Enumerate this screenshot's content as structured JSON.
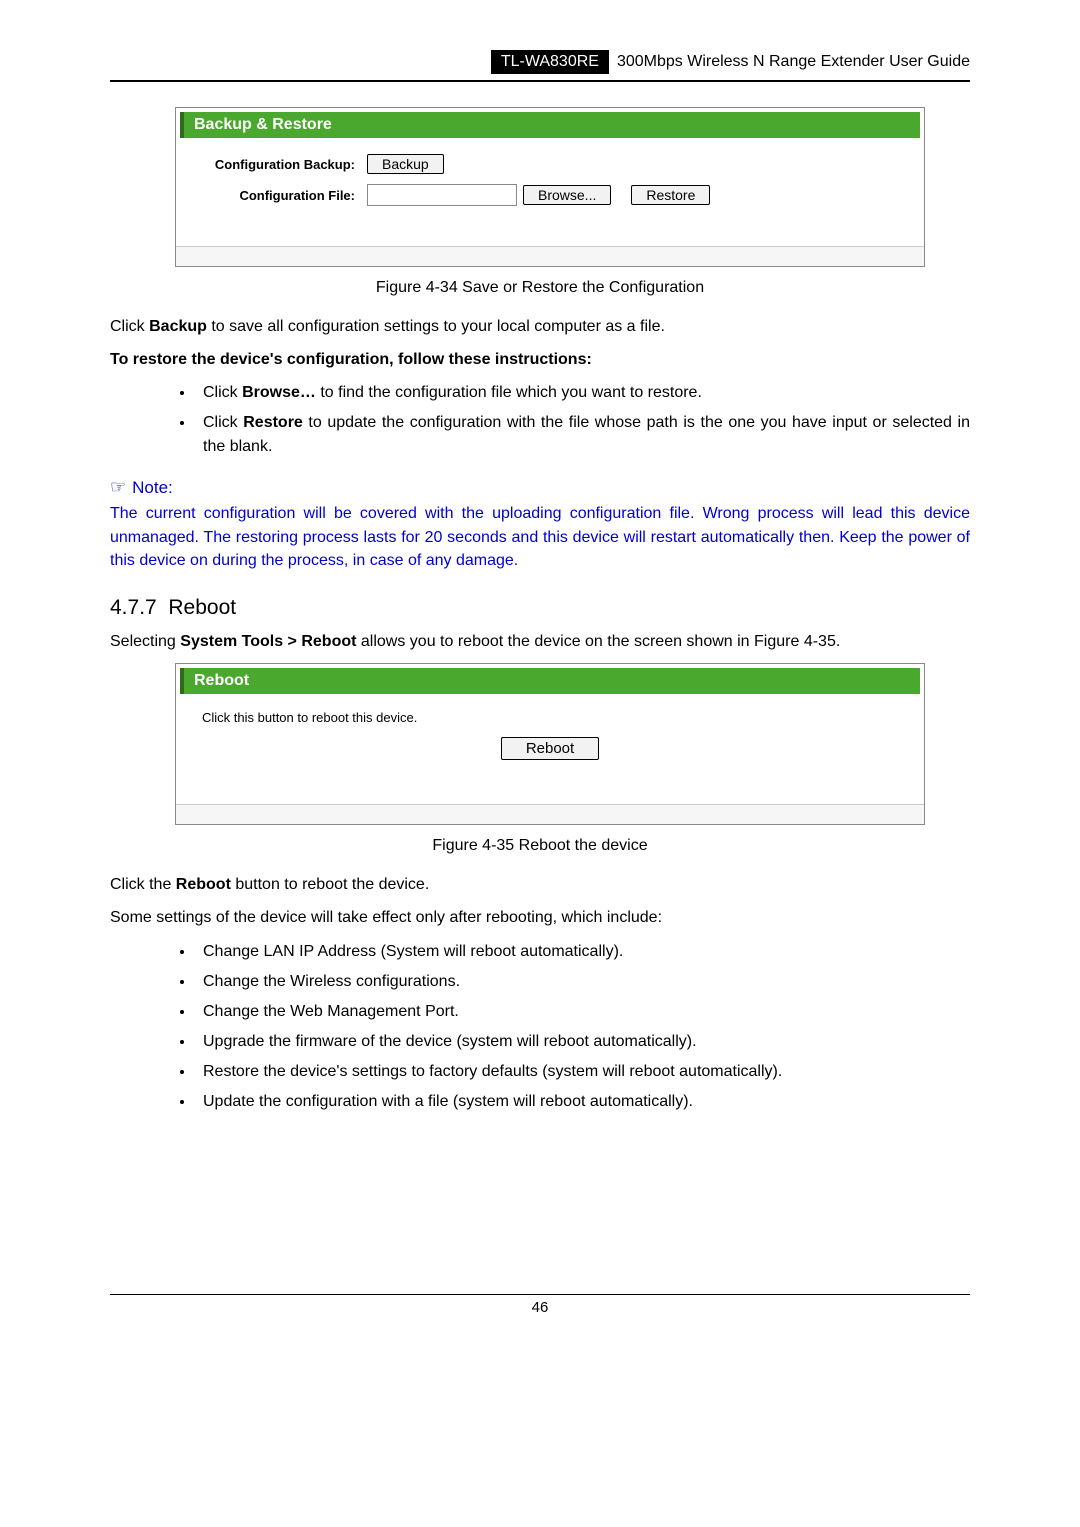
{
  "header": {
    "model": "TL-WA830RE",
    "title": "300Mbps Wireless N Range Extender User Guide"
  },
  "backup_box": {
    "title": "Backup & Restore",
    "row1_label": "Configuration Backup:",
    "backup_btn": "Backup",
    "row2_label": "Configuration File:",
    "browse_btn": "Browse...",
    "restore_btn": "Restore"
  },
  "caption1": "Figure 4-34 Save or Restore the Configuration",
  "para1_pre": "Click ",
  "para1_bold": "Backup",
  "para1_post": " to save all configuration settings to your local computer as a file.",
  "para2": "To restore the device's configuration, follow these instructions:",
  "list1": {
    "i0_pre": "Click ",
    "i0_bold": "Browse…",
    "i0_post": " to find the configuration file which you want to restore.",
    "i1_pre": "Click ",
    "i1_bold": "Restore",
    "i1_post": " to update the configuration with the file whose path is the one you have input or selected in the blank."
  },
  "note": {
    "icon": "☞",
    "label": "Note:",
    "body": "The current configuration will be covered with the uploading configuration file. Wrong process will lead this device unmanaged. The restoring process lasts for 20 seconds and this device will restart automatically then. Keep the power of this device on during the process, in case of any damage."
  },
  "section": {
    "num": "4.7.7",
    "title": "Reboot"
  },
  "para3_pre": "Selecting ",
  "para3_bold": "System Tools > Reboot",
  "para3_post": " allows you to reboot the device on the screen shown in Figure 4-35.",
  "reboot_box": {
    "title": "Reboot",
    "inst": "Click this button to reboot this device.",
    "btn": "Reboot"
  },
  "caption2": "Figure 4-35 Reboot the device",
  "para4_pre": "Click the ",
  "para4_bold": "Reboot",
  "para4_post": " button to reboot the device.",
  "para5": "Some settings of the device will take effect only after rebooting, which include:",
  "list2": {
    "i0": "Change LAN IP Address (System will reboot automatically).",
    "i1": "Change the Wireless configurations.",
    "i2": "Change the Web Management Port.",
    "i3": "Upgrade the firmware of the device (system will reboot automatically).",
    "i4": "Restore the device's settings to factory defaults (system will reboot automatically).",
    "i5": "Update the configuration with a file (system will reboot automatically)."
  },
  "page_number": "46"
}
